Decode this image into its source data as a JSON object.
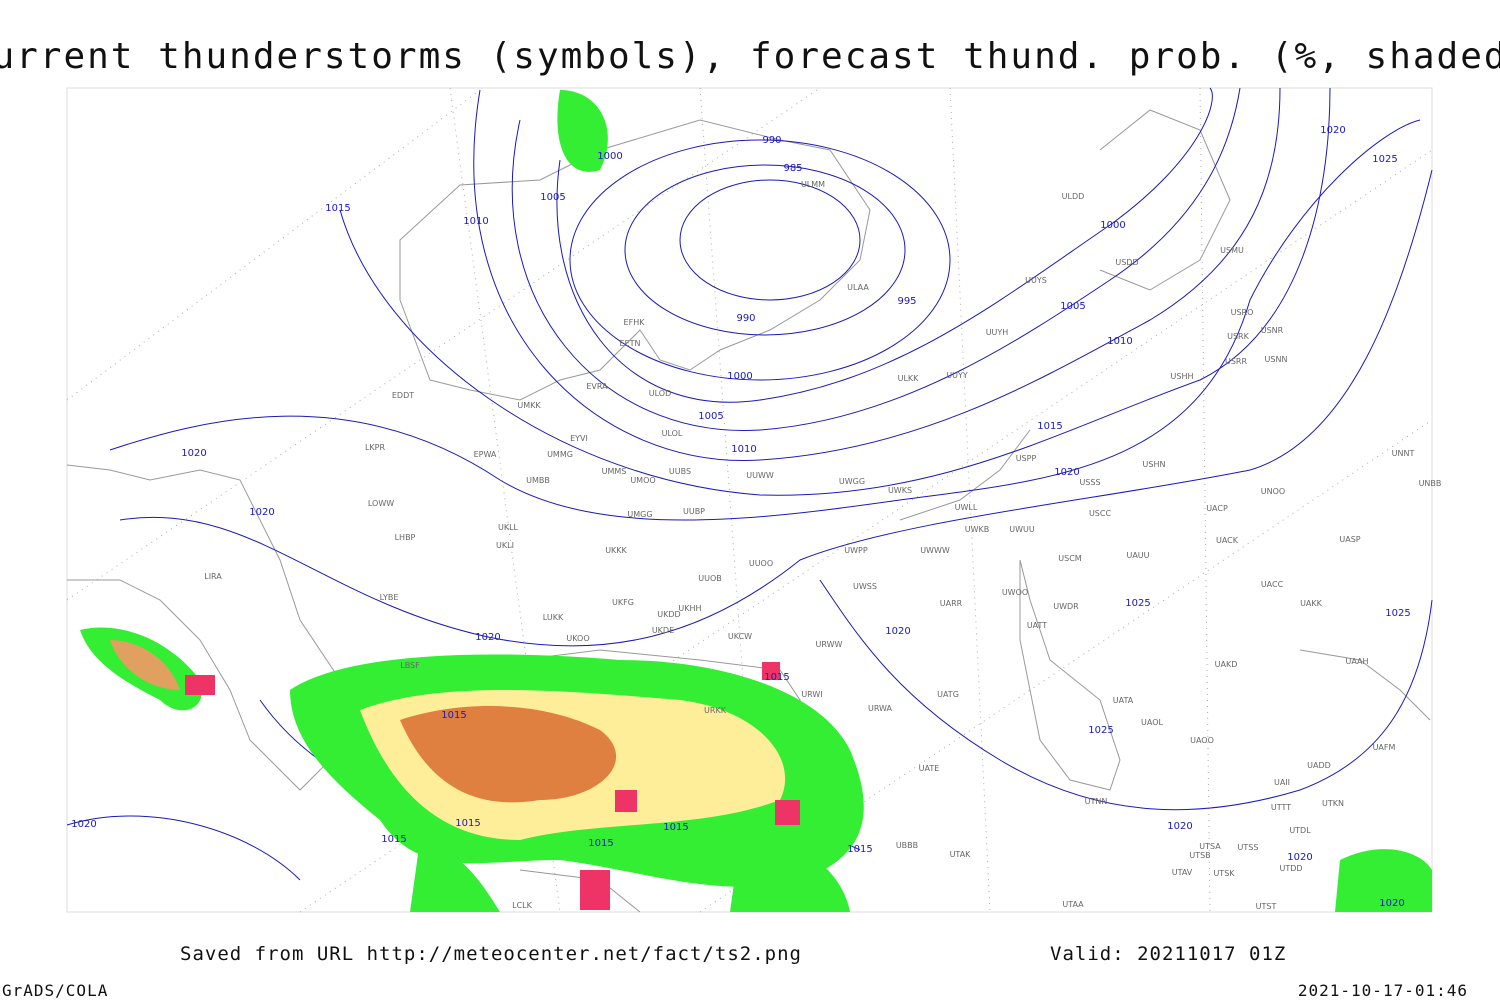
{
  "header": {
    "title": "Current thunderstorms (symbols), forecast thund. prob. (%, shaded)"
  },
  "footer": {
    "saved_from": "Saved from URL http://meteocenter.net/fact/ts2.png",
    "valid": "Valid: 20211017 01Z",
    "software": "GrADS/COLA",
    "timestamp": "2021-10-17-01:46"
  },
  "isobar_labels": [
    1000,
    1005,
    1015,
    1010,
    990,
    985,
    995,
    990,
    1000,
    1005,
    1000,
    1005,
    1010,
    1015,
    1020,
    1020,
    1025,
    1020,
    1020,
    1020,
    1015,
    1015,
    1020,
    1025,
    1025,
    1025,
    1015,
    1015,
    1015,
    1015,
    1015,
    1020,
    1020,
    1020,
    1020,
    1010
  ],
  "stations": [
    "ULDD",
    "USDD",
    "USMU",
    "UUYS",
    "ULAA",
    "ULMM",
    "UUYH",
    "USRO",
    "USRK",
    "USNR",
    "USRR",
    "USNN",
    "USHH",
    "ULKK",
    "UUYY",
    "EFHK",
    "EETN",
    "EVRA",
    "ULOD",
    "ULOL",
    "UMKK",
    "EDDT",
    "EYVI",
    "UMMG",
    "EPWA",
    "LKPR",
    "UMMS",
    "UMOO",
    "UUBS",
    "UUWW",
    "UWGG",
    "UWKS",
    "USPP",
    "USSS",
    "USHN",
    "UNOO",
    "UNNT",
    "UNBB",
    "USCC",
    "UACP",
    "UWLL",
    "UWKB",
    "UWUU",
    "UMBB",
    "LOWW",
    "UMGG",
    "UUBP",
    "UKLL",
    "UKLI",
    "LHBP",
    "UKKK",
    "UWPP",
    "UWWW",
    "USCM",
    "UAUU",
    "UACK",
    "UASP",
    "LIRA",
    "UUOO",
    "UUOB",
    "UWSS",
    "UACC",
    "UAKK",
    "LYBE",
    "UKHH",
    "UKDD",
    "LUKK",
    "UKFG",
    "UARR",
    "UWOO",
    "UWDR",
    "UATT",
    "URWW",
    "UKOO",
    "UKDE",
    "UKCW",
    "UAKD",
    "UAAH",
    "LBSF",
    "URWI",
    "URKK",
    "UATG",
    "URWA",
    "UATA",
    "UAOL",
    "UAOO",
    "UAFM",
    "UATE",
    "UTNN",
    "UAII",
    "UADD",
    "UTKN",
    "UTTT",
    "UTDL",
    "UTSA",
    "UTSS",
    "UTSB",
    "UTAV",
    "UTSK",
    "UTDD",
    "UTAK",
    "UTAA",
    "UTST",
    "LCLK",
    "UBBB"
  ]
}
